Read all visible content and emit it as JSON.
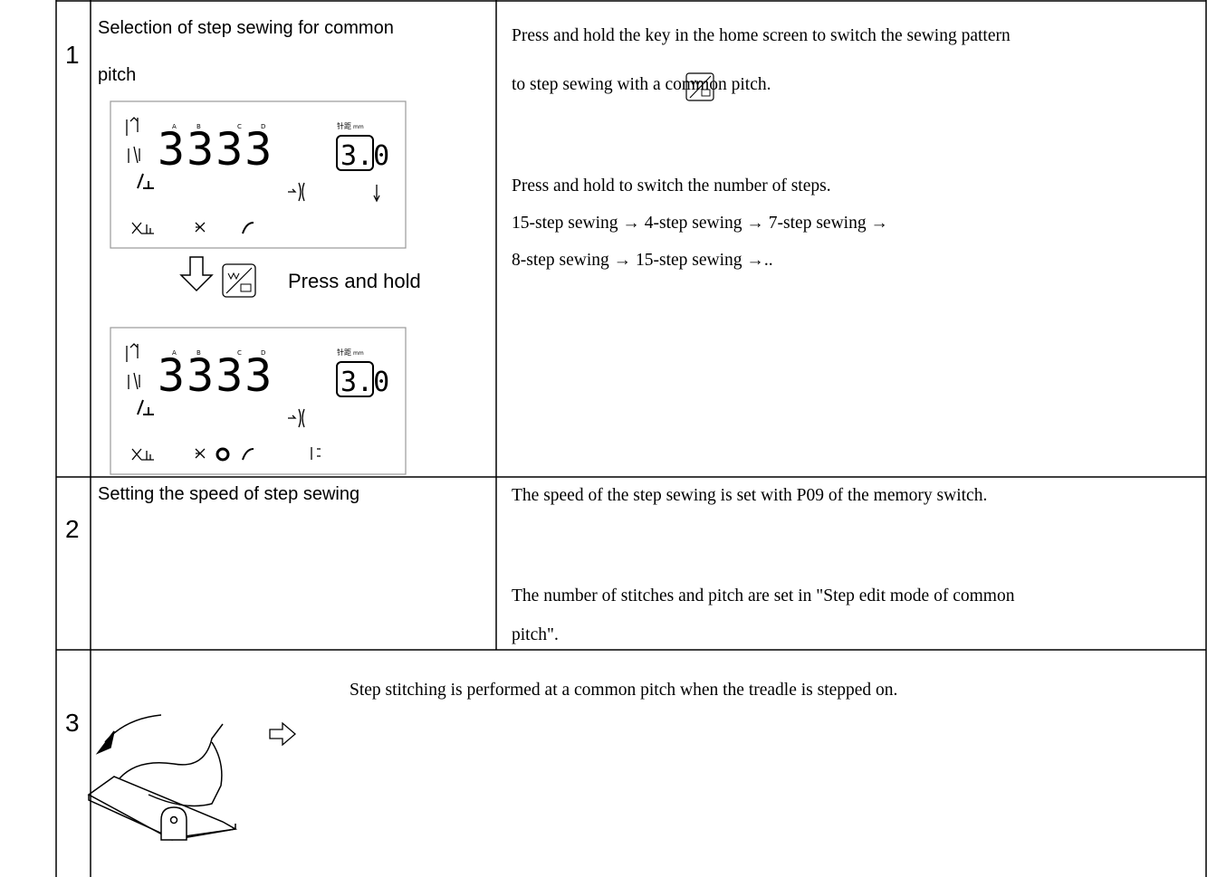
{
  "rows": [
    {
      "number": "1",
      "title": [
        "Selection of step sewing for common",
        "pitch"
      ],
      "display_before": {
        "labels": [
          "A",
          "B",
          "C",
          "D"
        ],
        "pitch_label": "针距",
        "unit": "mm",
        "digits": "3333",
        "pitch": "3.0"
      },
      "action": "Press and hold",
      "display_after": {
        "labels": [
          "A",
          "B",
          "C",
          "D"
        ],
        "pitch_label": "针距",
        "unit": "mm",
        "digits": "3333",
        "pitch": "3.0"
      },
      "description": [
        "Press and hold the key in the home screen to switch the sewing pattern",
        "to step sewing with a common pitch.",
        "Press and hold to switch the number of steps.",
        "15-step sewing → 4-step sewing → 7-step sewing →",
        "8-step sewing → 15-step sewing →.."
      ]
    },
    {
      "number": "2",
      "title": [
        "Setting the speed of step sewing"
      ],
      "description": [
        "The speed of the step sewing is set with P09 of the memory switch.",
        "The number of stitches and pitch are set in \"Step edit mode of common",
        "pitch\"."
      ]
    },
    {
      "number": "3",
      "description": [
        "Step stitching is performed at a common pitch when the treadle is stepped on."
      ]
    }
  ]
}
